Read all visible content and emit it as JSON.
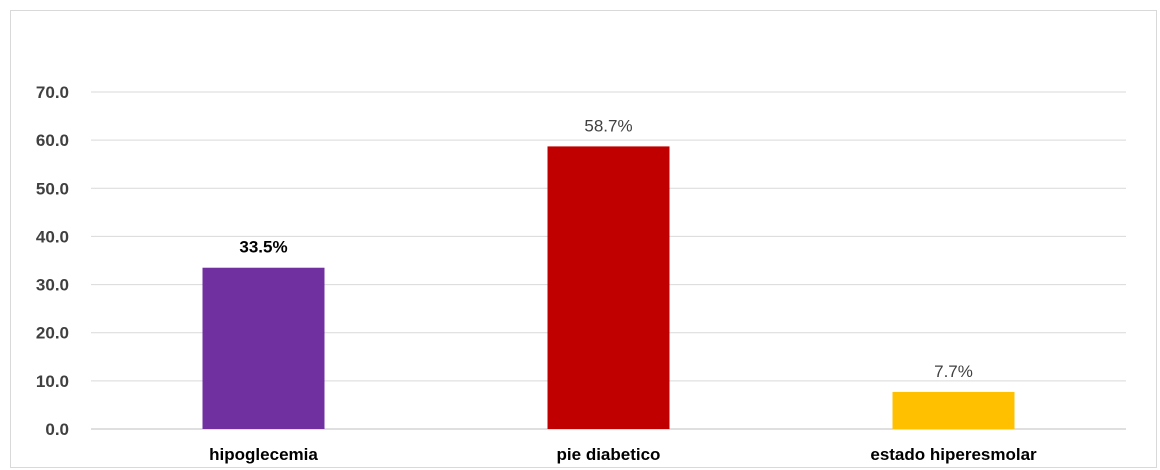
{
  "chart_data": {
    "type": "bar",
    "title": "",
    "xlabel": "",
    "ylabel": "",
    "categories": [
      "hipoglecemia",
      "pie diabetico",
      "estado hiperesmolar"
    ],
    "values": [
      33.5,
      58.7,
      7.7
    ],
    "data_labels": [
      "33.5%",
      "58.7%",
      "7.7%"
    ],
    "data_label_bold": [
      true,
      false,
      false
    ],
    "colors": [
      "#7030a0",
      "#c00000",
      "#ffc000"
    ],
    "ylim": [
      0,
      70
    ],
    "yticks": [
      0,
      10,
      20,
      30,
      40,
      50,
      60,
      70
    ],
    "ytick_labels": [
      "0.0",
      "10.0",
      "20.0",
      "30.0",
      "40.0",
      "50.0",
      "60.0",
      "70.0"
    ],
    "grid": true,
    "legend": "none"
  }
}
